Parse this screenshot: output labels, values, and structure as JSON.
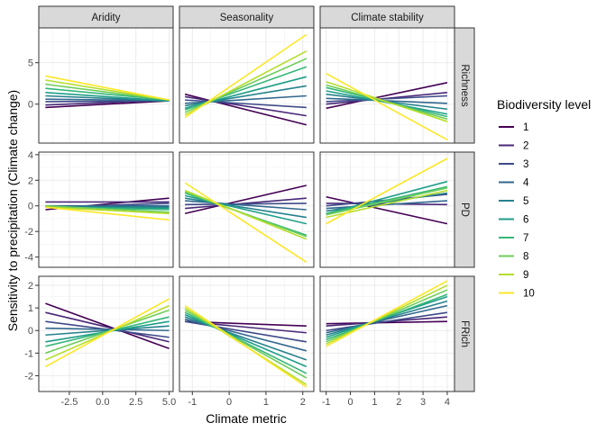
{
  "chart_data": {
    "type": "line",
    "xlabel": "Climate metric",
    "ylabel": "Sensitivity to precipitation (Climate change)",
    "column_facets": [
      "Aridity",
      "Seasonality",
      "Climate stability"
    ],
    "row_facets": [
      "Richness",
      "PD",
      "FRich"
    ],
    "legend": {
      "title": "Biodiversity level",
      "position": "right",
      "levels": [
        "1",
        "2",
        "3",
        "4",
        "5",
        "6",
        "7",
        "8",
        "9",
        "10"
      ],
      "colors": [
        "#440154",
        "#482878",
        "#3E4A89",
        "#31688E",
        "#26828E",
        "#1F9E89",
        "#35B779",
        "#6DCD59",
        "#B4DE2C",
        "#FDE725"
      ]
    },
    "x_axes": [
      {
        "facet": "Aridity",
        "range": [
          -4.8,
          5.3
        ],
        "ticks": [
          -2.5,
          0.0,
          2.5,
          5.0
        ],
        "tick_labels": [
          "-2.5",
          "0.0",
          "2.5",
          "5.0"
        ]
      },
      {
        "facet": "Seasonality",
        "range": [
          -1.35,
          2.3
        ],
        "ticks": [
          -1,
          0,
          1,
          2
        ],
        "tick_labels": [
          "-1",
          "0",
          "1",
          "2"
        ]
      },
      {
        "facet": "Climate stability",
        "range": [
          -1.25,
          4.3
        ],
        "ticks": [
          -1,
          0,
          1,
          2,
          3,
          4
        ],
        "tick_labels": [
          "-1",
          "0",
          "1",
          "2",
          "3",
          "4"
        ]
      }
    ],
    "y_axes": [
      {
        "facet": "Richness",
        "range": [
          -4.7,
          9.2
        ],
        "ticks": [
          0,
          5
        ],
        "tick_labels": [
          "0",
          "5"
        ]
      },
      {
        "facet": "PD",
        "range": [
          -4.8,
          4.2
        ],
        "ticks": [
          -4,
          -2,
          0,
          2,
          4
        ],
        "tick_labels": [
          "-4",
          "-2",
          "0",
          "2",
          "4"
        ]
      },
      {
        "facet": "FRich",
        "range": [
          -2.7,
          2.4
        ],
        "ticks": [
          -2,
          -1,
          0,
          1,
          2
        ],
        "tick_labels": [
          "-2",
          "-1",
          "0",
          "1",
          "2"
        ]
      }
    ],
    "grid": true,
    "panels": [
      {
        "row": "Richness",
        "col": "Aridity",
        "x": [
          -4.3,
          5.0
        ],
        "series": [
          {
            "level": "1",
            "y": [
              -0.4,
              0.4
            ]
          },
          {
            "level": "2",
            "y": [
              -0.1,
              0.5
            ]
          },
          {
            "level": "3",
            "y": [
              0.3,
              0.4
            ]
          },
          {
            "level": "4",
            "y": [
              0.6,
              0.4
            ]
          },
          {
            "level": "5",
            "y": [
              1.0,
              0.4
            ]
          },
          {
            "level": "6",
            "y": [
              1.4,
              0.4
            ]
          },
          {
            "level": "7",
            "y": [
              1.9,
              0.5
            ]
          },
          {
            "level": "8",
            "y": [
              2.4,
              0.5
            ]
          },
          {
            "level": "9",
            "y": [
              2.9,
              0.5
            ]
          },
          {
            "level": "10",
            "y": [
              3.4,
              0.5
            ]
          }
        ]
      },
      {
        "row": "Richness",
        "col": "Seasonality",
        "x": [
          -1.2,
          2.1
        ],
        "series": [
          {
            "level": "1",
            "y": [
              1.2,
              -2.5
            ]
          },
          {
            "level": "2",
            "y": [
              0.9,
              -1.4
            ]
          },
          {
            "level": "3",
            "y": [
              0.5,
              -0.4
            ]
          },
          {
            "level": "4",
            "y": [
              0.1,
              1.0
            ]
          },
          {
            "level": "5",
            "y": [
              -0.2,
              2.2
            ]
          },
          {
            "level": "6",
            "y": [
              -0.5,
              3.3
            ]
          },
          {
            "level": "7",
            "y": [
              -0.7,
              4.5
            ]
          },
          {
            "level": "8",
            "y": [
              -1.0,
              5.5
            ]
          },
          {
            "level": "9",
            "y": [
              -1.3,
              6.4
            ]
          },
          {
            "level": "10",
            "y": [
              -1.6,
              8.4
            ]
          }
        ]
      },
      {
        "row": "Richness",
        "col": "Climate stability",
        "x": [
          -1.0,
          4.0
        ],
        "series": [
          {
            "level": "1",
            "y": [
              -0.5,
              2.6
            ]
          },
          {
            "level": "2",
            "y": [
              0.0,
              1.4
            ]
          },
          {
            "level": "3",
            "y": [
              0.3,
              1.0
            ]
          },
          {
            "level": "4",
            "y": [
              0.7,
              0.1
            ]
          },
          {
            "level": "5",
            "y": [
              1.2,
              -0.6
            ]
          },
          {
            "level": "6",
            "y": [
              1.6,
              -1.2
            ]
          },
          {
            "level": "7",
            "y": [
              2.0,
              -1.5
            ]
          },
          {
            "level": "8",
            "y": [
              2.3,
              -1.8
            ]
          },
          {
            "level": "9",
            "y": [
              2.7,
              -2.1
            ]
          },
          {
            "level": "10",
            "y": [
              3.7,
              -4.3
            ]
          }
        ]
      },
      {
        "row": "PD",
        "col": "Aridity",
        "x": [
          -4.3,
          5.0
        ],
        "series": [
          {
            "level": "1",
            "y": [
              -0.3,
              0.6
            ]
          },
          {
            "level": "2",
            "y": [
              0.3,
              0.3
            ]
          },
          {
            "level": "3",
            "y": [
              -0.1,
              0.2
            ]
          },
          {
            "level": "4",
            "y": [
              0.0,
              0.0
            ]
          },
          {
            "level": "5",
            "y": [
              -0.1,
              -0.1
            ]
          },
          {
            "level": "6",
            "y": [
              -0.1,
              -0.2
            ]
          },
          {
            "level": "7",
            "y": [
              -0.1,
              -0.3
            ]
          },
          {
            "level": "8",
            "y": [
              0.0,
              -0.5
            ]
          },
          {
            "level": "9",
            "y": [
              -0.1,
              -0.6
            ]
          },
          {
            "level": "10",
            "y": [
              -0.1,
              -1.1
            ]
          }
        ]
      },
      {
        "row": "PD",
        "col": "Seasonality",
        "x": [
          -1.2,
          2.1
        ],
        "series": [
          {
            "level": "1",
            "y": [
              -0.6,
              1.6
            ]
          },
          {
            "level": "2",
            "y": [
              -0.2,
              0.6
            ]
          },
          {
            "level": "3",
            "y": [
              0.1,
              0.2
            ]
          },
          {
            "level": "4",
            "y": [
              0.4,
              -0.3
            ]
          },
          {
            "level": "5",
            "y": [
              0.6,
              -0.9
            ]
          },
          {
            "level": "6",
            "y": [
              0.8,
              -1.4
            ]
          },
          {
            "level": "7",
            "y": [
              1.0,
              -2.3
            ]
          },
          {
            "level": "8",
            "y": [
              1.1,
              -2.4
            ]
          },
          {
            "level": "9",
            "y": [
              1.2,
              -2.6
            ]
          },
          {
            "level": "10",
            "y": [
              1.8,
              -4.4
            ]
          }
        ]
      },
      {
        "row": "PD",
        "col": "Climate stability",
        "x": [
          -1.0,
          4.0
        ],
        "series": [
          {
            "level": "1",
            "y": [
              0.7,
              -1.4
            ]
          },
          {
            "level": "2",
            "y": [
              0.2,
              0.1
            ]
          },
          {
            "level": "3",
            "y": [
              0.0,
              0.9
            ]
          },
          {
            "level": "4",
            "y": [
              -0.2,
              0.4
            ]
          },
          {
            "level": "5",
            "y": [
              -0.4,
              1.0
            ]
          },
          {
            "level": "6",
            "y": [
              -0.6,
              1.9
            ]
          },
          {
            "level": "7",
            "y": [
              -0.6,
              1.5
            ]
          },
          {
            "level": "8",
            "y": [
              -0.7,
              1.4
            ]
          },
          {
            "level": "9",
            "y": [
              -0.9,
              1.2
            ]
          },
          {
            "level": "10",
            "y": [
              -1.4,
              3.7
            ]
          }
        ]
      },
      {
        "row": "FRich",
        "col": "Aridity",
        "x": [
          -4.3,
          5.0
        ],
        "series": [
          {
            "level": "1",
            "y": [
              1.2,
              -0.8
            ]
          },
          {
            "level": "2",
            "y": [
              0.8,
              -0.5
            ]
          },
          {
            "level": "3",
            "y": [
              0.4,
              -0.3
            ]
          },
          {
            "level": "4",
            "y": [
              0.1,
              0.0
            ]
          },
          {
            "level": "5",
            "y": [
              -0.2,
              0.2
            ]
          },
          {
            "level": "6",
            "y": [
              -0.5,
              0.4
            ]
          },
          {
            "level": "7",
            "y": [
              -0.7,
              0.6
            ]
          },
          {
            "level": "8",
            "y": [
              -1.0,
              0.9
            ]
          },
          {
            "level": "9",
            "y": [
              -1.3,
              1.1
            ]
          },
          {
            "level": "10",
            "y": [
              -1.6,
              1.4
            ]
          }
        ]
      },
      {
        "row": "FRich",
        "col": "Seasonality",
        "x": [
          -1.2,
          2.1
        ],
        "series": [
          {
            "level": "1",
            "y": [
              0.4,
              0.2
            ]
          },
          {
            "level": "2",
            "y": [
              0.4,
              -0.1
            ]
          },
          {
            "level": "3",
            "y": [
              0.4,
              -0.5
            ]
          },
          {
            "level": "4",
            "y": [
              0.5,
              -0.9
            ]
          },
          {
            "level": "5",
            "y": [
              0.6,
              -1.3
            ]
          },
          {
            "level": "6",
            "y": [
              0.7,
              -1.6
            ]
          },
          {
            "level": "7",
            "y": [
              0.8,
              -1.9
            ]
          },
          {
            "level": "8",
            "y": [
              0.9,
              -2.1
            ]
          },
          {
            "level": "9",
            "y": [
              1.0,
              -2.4
            ]
          },
          {
            "level": "10",
            "y": [
              1.1,
              -2.5
            ]
          }
        ]
      },
      {
        "row": "FRich",
        "col": "Climate stability",
        "x": [
          -1.0,
          4.0
        ],
        "series": [
          {
            "level": "1",
            "y": [
              0.3,
              0.4
            ]
          },
          {
            "level": "2",
            "y": [
              0.2,
              0.6
            ]
          },
          {
            "level": "3",
            "y": [
              0.0,
              0.8
            ]
          },
          {
            "level": "4",
            "y": [
              -0.1,
              1.1
            ]
          },
          {
            "level": "5",
            "y": [
              -0.2,
              1.3
            ]
          },
          {
            "level": "6",
            "y": [
              -0.3,
              1.5
            ]
          },
          {
            "level": "7",
            "y": [
              -0.4,
              1.6
            ]
          },
          {
            "level": "8",
            "y": [
              -0.5,
              1.8
            ]
          },
          {
            "level": "9",
            "y": [
              -0.6,
              2.0
            ]
          },
          {
            "level": "10",
            "y": [
              -0.7,
              2.2
            ]
          }
        ]
      }
    ]
  }
}
